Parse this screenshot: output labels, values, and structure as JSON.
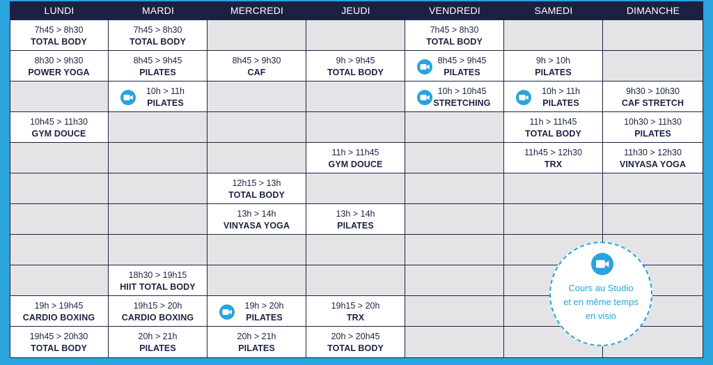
{
  "days": [
    "LUNDI",
    "MARDI",
    "MERCREDI",
    "JEUDI",
    "VENDREDI",
    "SAMEDI",
    "DIMANCHE"
  ],
  "schedule": [
    [
      {
        "time": "7h45 > 8h30",
        "name": "TOTAL BODY"
      },
      {
        "time": "7h45 > 8h30",
        "name": "TOTAL BODY"
      },
      null,
      null,
      {
        "time": "7h45 > 8h30",
        "name": "TOTAL BODY"
      },
      null,
      null
    ],
    [
      {
        "time": "8h30 > 9h30",
        "name": "POWER YOGA"
      },
      {
        "time": "8h45 > 9h45",
        "name": "PILATES"
      },
      {
        "time": "8h45 > 9h30",
        "name": "CAF"
      },
      {
        "time": "9h > 9h45",
        "name": "TOTAL BODY"
      },
      {
        "time": "8h45 > 9h45",
        "name": "PILATES",
        "video": true
      },
      {
        "time": "9h > 10h",
        "name": "PILATES"
      },
      null
    ],
    [
      null,
      {
        "time": "10h > 11h",
        "name": "PILATES",
        "video": true
      },
      null,
      null,
      {
        "time": "10h > 10h45",
        "name": "STRETCHING",
        "video": true
      },
      {
        "time": "10h > 11h",
        "name": "PILATES",
        "video": true
      },
      {
        "time": "9h30 > 10h30",
        "name": "CAF STRETCH"
      }
    ],
    [
      {
        "time": "10h45 > 11h30",
        "name": "GYM DOUCE"
      },
      null,
      null,
      null,
      null,
      {
        "time": "11h > 11h45",
        "name": "TOTAL BODY"
      },
      {
        "time": "10h30 > 11h30",
        "name": "PILATES"
      }
    ],
    [
      null,
      null,
      null,
      {
        "time": "11h > 11h45",
        "name": "GYM DOUCE"
      },
      null,
      {
        "time": "11h45 > 12h30",
        "name": "TRX"
      },
      {
        "time": "11h30 > 12h30",
        "name": "VINYASA YOGA"
      }
    ],
    [
      null,
      null,
      {
        "time": "12h15 > 13h",
        "name": "TOTAL BODY"
      },
      null,
      null,
      null,
      null
    ],
    [
      null,
      null,
      {
        "time": "13h > 14h",
        "name": "VINYASA YOGA"
      },
      {
        "time": "13h > 14h",
        "name": "PILATES"
      },
      null,
      null,
      null
    ],
    [
      null,
      null,
      null,
      null,
      null,
      null,
      null
    ],
    [
      null,
      {
        "time": "18h30 > 19h15",
        "name": "HIIT TOTAL BODY"
      },
      null,
      null,
      null,
      null,
      null
    ],
    [
      {
        "time": "19h > 19h45",
        "name": "CARDIO BOXING"
      },
      {
        "time": "19h15 > 20h",
        "name": "CARDIO BOXING"
      },
      {
        "time": "19h > 20h",
        "name": "PILATES",
        "video": true
      },
      {
        "time": "19h15 > 20h",
        "name": "TRX"
      },
      null,
      null,
      null
    ],
    [
      {
        "time": "19h45 > 20h30",
        "name": "TOTAL BODY"
      },
      {
        "time": "20h > 21h",
        "name": "PILATES"
      },
      {
        "time": "20h > 21h",
        "name": "PILATES"
      },
      {
        "time": "20h > 20h45",
        "name": "TOTAL BODY"
      },
      null,
      null,
      null
    ]
  ],
  "legend": {
    "icon": "video-camera-icon",
    "lines": [
      "Cours au Studio",
      "et en même temps",
      "en visio"
    ]
  },
  "colors": {
    "navy": "#1c2143",
    "accent": "#29a4dc",
    "empty_cell": "#e4e4e6",
    "filled_cell": "#ffffff"
  }
}
